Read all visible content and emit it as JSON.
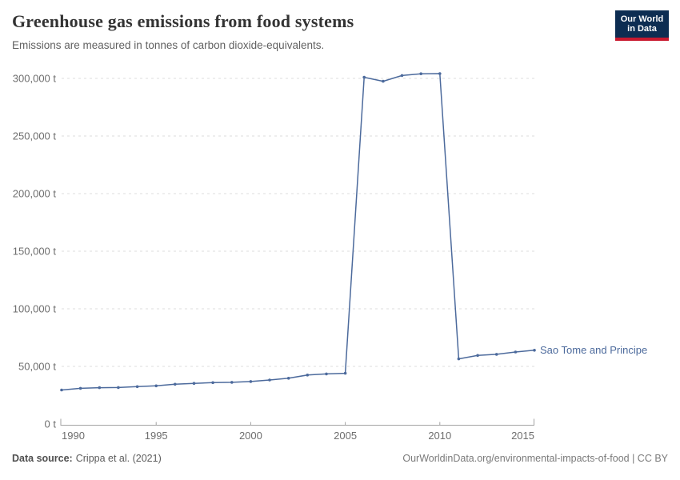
{
  "header": {
    "title": "Greenhouse gas emissions from food systems",
    "subtitle": "Emissions are measured in tonnes of carbon dioxide-equivalents.",
    "logo": {
      "line1": "Our World",
      "line2": "in Data",
      "bg_color": "#0d2d52",
      "bar_color": "#c8192f"
    }
  },
  "chart_data": {
    "type": "line",
    "title": "Greenhouse gas emissions from food systems",
    "xlabel": "",
    "ylabel": "",
    "xlim": [
      1990,
      2015
    ],
    "ylim": [
      0,
      300000
    ],
    "grid": "horizontal-dashed",
    "legend_position": "right-of-line-end",
    "unit": "t",
    "x_ticks": [
      {
        "value": 1990,
        "label": "1990"
      },
      {
        "value": 1995,
        "label": "1995"
      },
      {
        "value": 2000,
        "label": "2000"
      },
      {
        "value": 2005,
        "label": "2005"
      },
      {
        "value": 2010,
        "label": "2010"
      },
      {
        "value": 2015,
        "label": "2015"
      }
    ],
    "y_ticks": [
      {
        "value": 0,
        "label": "0 t"
      },
      {
        "value": 50000,
        "label": "50,000 t"
      },
      {
        "value": 100000,
        "label": "100,000 t"
      },
      {
        "value": 150000,
        "label": "150,000 t"
      },
      {
        "value": 200000,
        "label": "200,000 t"
      },
      {
        "value": 250000,
        "label": "250,000 t"
      },
      {
        "value": 300000,
        "label": "300,000 t"
      }
    ],
    "series": [
      {
        "name": "Sao Tome and Principe",
        "color": "#4C6A9C",
        "x": [
          1990,
          1991,
          1992,
          1993,
          1994,
          1995,
          1996,
          1997,
          1998,
          1999,
          2000,
          2001,
          2002,
          2003,
          2004,
          2005,
          2006,
          2007,
          2008,
          2009,
          2010,
          2011,
          2012,
          2013,
          2014,
          2015
        ],
        "values": [
          29500,
          31000,
          31500,
          31700,
          32400,
          33100,
          34500,
          35300,
          35900,
          36200,
          36900,
          38200,
          39700,
          42500,
          43500,
          44000,
          301000,
          297500,
          302500,
          304000,
          304200,
          56500,
          59500,
          60500,
          62500,
          64000
        ]
      }
    ]
  },
  "footer": {
    "source_label": "Data source:",
    "source_text": "Crippa et al. (2021)",
    "link_text": "OurWorldinData.org/environmental-impacts-of-food | CC BY"
  }
}
